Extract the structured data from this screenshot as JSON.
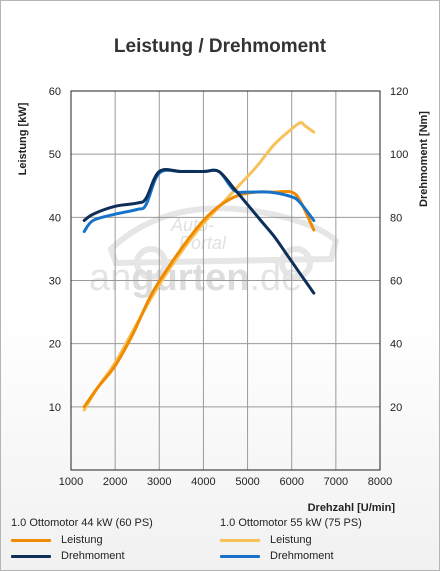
{
  "chart_data": {
    "type": "line",
    "title": "Leistung / Drehmoment",
    "xlabel": "Drehzahl [U/min]",
    "ylabel_left": "Leistung [kW]",
    "ylabel_right": "Drehmoment [Nm]",
    "xlim": [
      1000,
      8000
    ],
    "ylim_left": [
      0,
      60
    ],
    "ylim_right": [
      0,
      120
    ],
    "xticks": [
      "1000",
      "2000",
      "3000",
      "4000",
      "5000",
      "6000",
      "7000",
      "8000"
    ],
    "yticks_left": [
      "10",
      "20",
      "30",
      "40",
      "50",
      "60"
    ],
    "yticks_right": [
      "20",
      "40",
      "60",
      "80",
      "100",
      "120"
    ],
    "grid": true,
    "legend_position": "bottom",
    "groups": [
      {
        "name": "1.0 Ottomotor 44 kW (60 PS)",
        "series": [
          {
            "name": "Leistung",
            "axis": "left",
            "color": "#f08a00",
            "x": [
              1300,
              1600,
              2000,
              2400,
              2800,
              3200,
              3600,
              4000,
              4400,
              4800,
              5200,
              5600,
              6000,
              6200,
              6500
            ],
            "y": [
              10,
              13,
              16.5,
              21.5,
              27.5,
              32,
              36,
              39.5,
              42,
              43.5,
              44,
              44,
              44,
              42.5,
              38
            ]
          },
          {
            "name": "Drehmoment",
            "axis": "right",
            "color": "#0d2f5a",
            "x": [
              1300,
              1500,
              2000,
              2500,
              2700,
              3000,
              3500,
              4000,
              4350,
              4700,
              5000,
              5300,
              5600,
              5900,
              6200,
              6500
            ],
            "y": [
              79,
              81,
              83.5,
              84.5,
              86,
              94.5,
              94.5,
              94.5,
              94.5,
              89,
              84,
              79,
              74,
              68,
              62,
              56
            ]
          }
        ]
      },
      {
        "name": "1.0 Ottomotor 55 kW (75 PS)",
        "series": [
          {
            "name": "Leistung",
            "axis": "left",
            "color": "#f8c25a",
            "x": [
              1300,
              1600,
              2000,
              2400,
              2800,
              3200,
              3600,
              4000,
              4400,
              4800,
              5200,
              5600,
              6000,
              6200,
              6300,
              6500
            ],
            "y": [
              9.5,
              13,
              17,
              22,
              27,
              31.5,
              35.5,
              39,
              42,
              45,
              48,
              51.5,
              54,
              55,
              54.5,
              53.5
            ]
          },
          {
            "name": "Drehmoment",
            "axis": "right",
            "color": "#1673c9",
            "x": [
              1300,
              1500,
              2000,
              2500,
              2700,
              3000,
              3500,
              4000,
              4350,
              4700,
              5000,
              5500,
              6000,
              6200,
              6500
            ],
            "y": [
              75.5,
              79,
              81,
              82.5,
              84,
              94,
              94.5,
              94.5,
              94.5,
              88.5,
              88,
              88,
              86.5,
              84.5,
              79
            ]
          }
        ]
      }
    ]
  },
  "watermark": {
    "line1": "Auto-",
    "line2": "Portal",
    "word_a": "an",
    "word_b": "gurten",
    "word_c": ".de"
  }
}
